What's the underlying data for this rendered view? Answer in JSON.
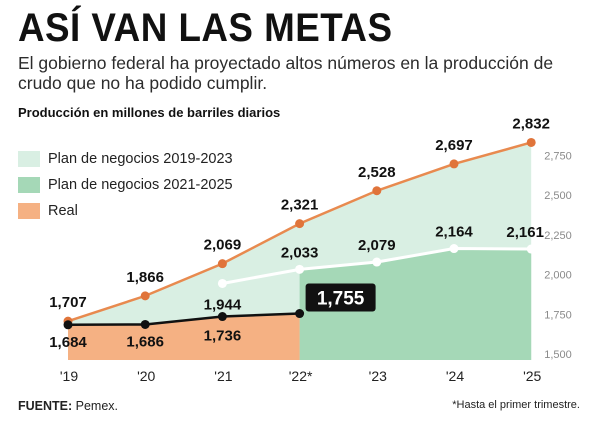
{
  "header": {
    "title": "ASÍ VAN LAS METAS",
    "subtitle": "El gobierno federal ha proyectado altos números en la producción de crudo que no ha podido cumplir.",
    "unit_label": "Producción en millones de barriles diarios"
  },
  "footer": {
    "source_label": "FUENTE:",
    "source_value": " Pemex.",
    "note": "*Hasta el primer trimestre."
  },
  "colors": {
    "plan_2019_fill": "#d9efe3",
    "plan_2021_fill": "#a5d8b7",
    "real_fill": "#f5b183",
    "orange_line": "#e88a4f",
    "orange_point": "#e0743a",
    "black": "#111111",
    "white_line": "#ffffff"
  },
  "chart_data": {
    "type": "area",
    "categories": [
      "'19",
      "'20",
      "'21",
      "'22*",
      "'23",
      "'24",
      "'25"
    ],
    "y_ticks": [
      "1,500",
      "1,750",
      "2,000",
      "2,250",
      "2,500",
      "2,750"
    ],
    "y_tick_values": [
      1500,
      1750,
      2000,
      2250,
      2500,
      2750
    ],
    "ylim": [
      1500,
      2850
    ],
    "legend_position": "top-left",
    "series": [
      {
        "name": "Plan de negocios 2019-2023",
        "values": [
          1707,
          1866,
          2069,
          2321,
          2528,
          2697,
          2832
        ],
        "labels": [
          "1,707",
          "1,866",
          "2,069",
          "2,321",
          "2,528",
          "2,697",
          "2,832"
        ]
      },
      {
        "name": "Plan de negocios 2021-2025",
        "values": [
          null,
          null,
          1944,
          2033,
          2079,
          2164,
          2161
        ],
        "labels": [
          "",
          "",
          "1,944",
          "2,033",
          "2,079",
          "2,164",
          "2,161"
        ]
      },
      {
        "name": "Real",
        "values": [
          1684,
          1686,
          1736,
          1755,
          null,
          null,
          null
        ],
        "labels": [
          "1,684",
          "1,686",
          "1,736",
          "1,755",
          "",
          "",
          ""
        ]
      }
    ]
  }
}
